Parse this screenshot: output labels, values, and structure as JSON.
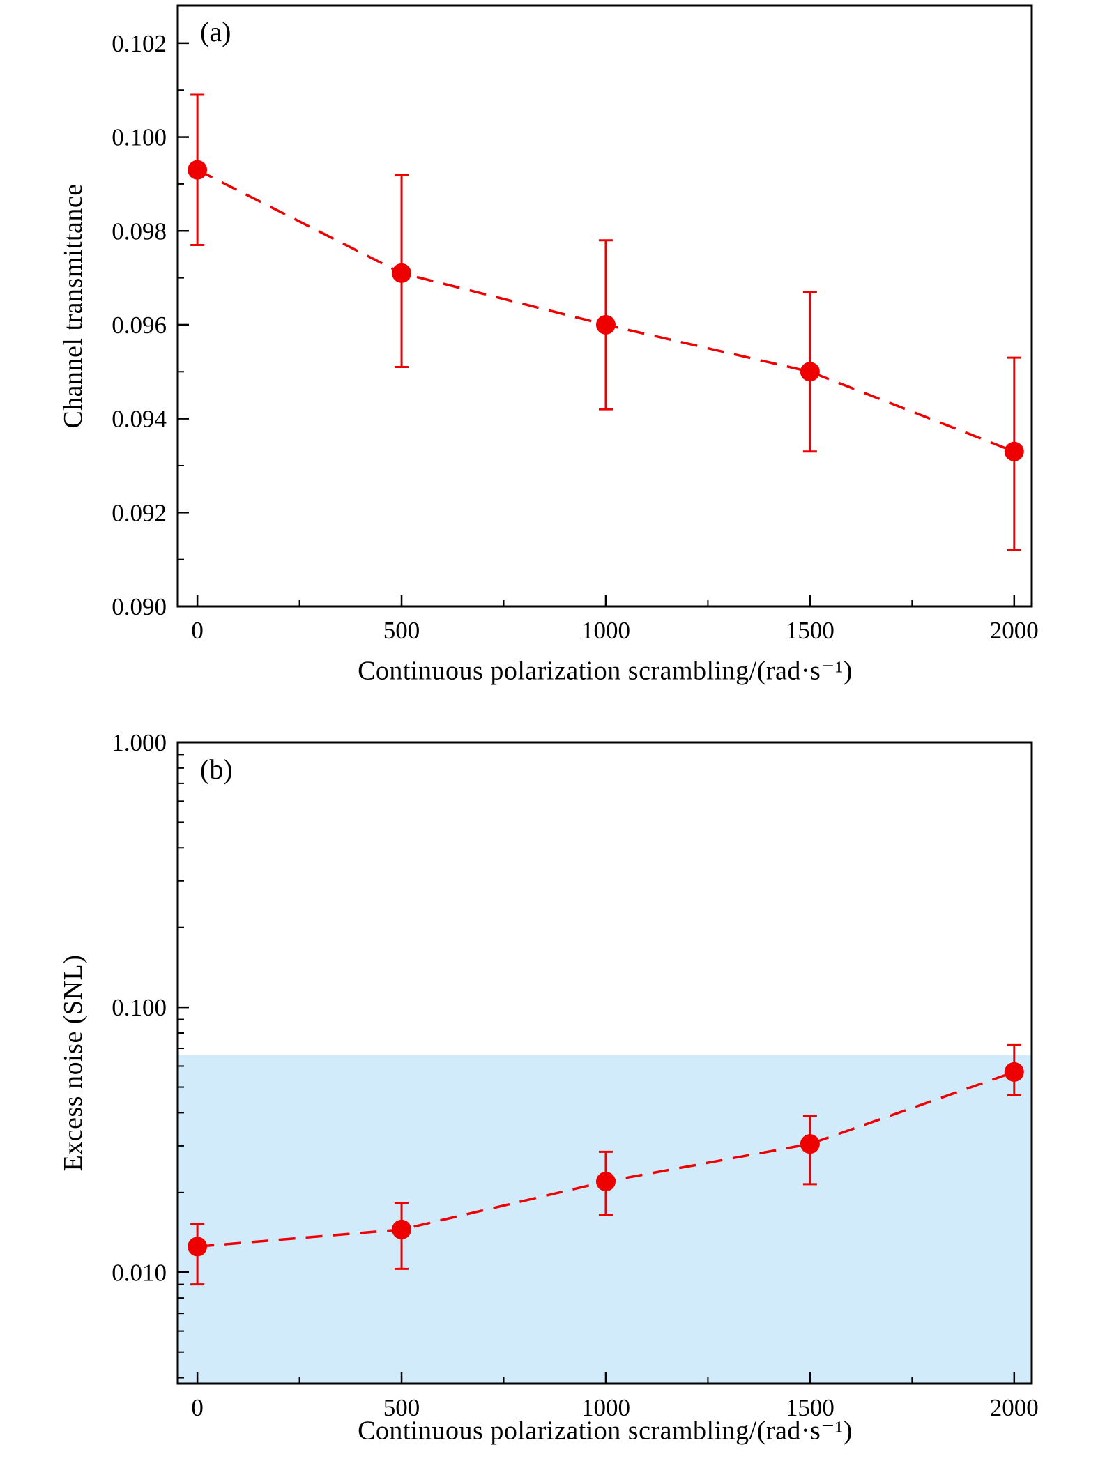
{
  "figure": {
    "background": "#ffffff",
    "accent_red": "#ee0000",
    "band_blue": "#d2ebfb"
  },
  "chart_data": [
    {
      "id": "panel-a",
      "type": "scatter",
      "panel_label": "(a)",
      "title": "",
      "xlabel": "Continuous polarization scrambling/(rad·s⁻¹)",
      "ylabel": "Channel transmittance",
      "xscale": "linear",
      "yscale": "linear",
      "xlim": [
        -48,
        2043
      ],
      "ylim": [
        0.09,
        0.1028
      ],
      "grid": false,
      "legend": "none",
      "x_major_ticks": [
        {
          "v": 0,
          "label": "0"
        },
        {
          "v": 500,
          "label": "500"
        },
        {
          "v": 1000,
          "label": "1000"
        },
        {
          "v": 1500,
          "label": "1500"
        },
        {
          "v": 2000,
          "label": "2000"
        }
      ],
      "x_minor_ticks": [
        250,
        750,
        1250,
        1750
      ],
      "y_major_ticks": [
        {
          "v": 0.09,
          "label": "0.090"
        },
        {
          "v": 0.092,
          "label": "0.092"
        },
        {
          "v": 0.094,
          "label": "0.094"
        },
        {
          "v": 0.096,
          "label": "0.096"
        },
        {
          "v": 0.098,
          "label": "0.098"
        },
        {
          "v": 0.1,
          "label": "0.100"
        },
        {
          "v": 0.102,
          "label": "0.102"
        }
      ],
      "y_minor_ticks": [
        0.091,
        0.093,
        0.095,
        0.097,
        0.099,
        0.101
      ],
      "series": [
        {
          "name": "channel-transmittance",
          "color": "#ee0000",
          "marker": "circle",
          "line": "dashed",
          "points": [
            {
              "x": 0,
              "y": 0.0993,
              "lo": 0.0977,
              "hi": 0.1009
            },
            {
              "x": 500,
              "y": 0.0971,
              "lo": 0.0951,
              "hi": 0.0992
            },
            {
              "x": 1000,
              "y": 0.096,
              "lo": 0.0942,
              "hi": 0.0978
            },
            {
              "x": 1500,
              "y": 0.095,
              "lo": 0.0933,
              "hi": 0.0967
            },
            {
              "x": 2000,
              "y": 0.0933,
              "lo": 0.0912,
              "hi": 0.0953
            }
          ]
        }
      ]
    },
    {
      "id": "panel-b",
      "type": "scatter",
      "panel_label": "(b)",
      "title": "",
      "xlabel": "Continuous polarization scrambling/(rad·s⁻¹)",
      "ylabel": "Excess noise (SNL)",
      "xscale": "linear",
      "yscale": "log",
      "xlim": [
        -48,
        2043
      ],
      "ylim": [
        0.0038,
        1.0
      ],
      "grid": false,
      "legend": "none",
      "band": {
        "top": 0.066,
        "color": "#d2ebfb"
      },
      "x_major_ticks": [
        {
          "v": 0,
          "label": "0"
        },
        {
          "v": 500,
          "label": "500"
        },
        {
          "v": 1000,
          "label": "1000"
        },
        {
          "v": 1500,
          "label": "1500"
        },
        {
          "v": 2000,
          "label": "2000"
        }
      ],
      "x_minor_ticks": [
        250,
        750,
        1250,
        1750
      ],
      "y_major_ticks": [
        {
          "v": 1.0,
          "label": "1.000"
        },
        {
          "v": 0.1,
          "label": "0.100"
        },
        {
          "v": 0.01,
          "label": "0.010"
        }
      ],
      "y_minor_ticks": [
        0.004,
        0.005,
        0.006,
        0.007,
        0.008,
        0.009,
        0.02,
        0.03,
        0.04,
        0.05,
        0.06,
        0.07,
        0.08,
        0.09,
        0.2,
        0.3,
        0.4,
        0.5,
        0.6,
        0.7,
        0.8,
        0.9
      ],
      "series": [
        {
          "name": "excess-noise",
          "color": "#ee0000",
          "marker": "circle",
          "line": "dashed",
          "points": [
            {
              "x": 0,
              "y": 0.0125,
              "lo": 0.009,
              "hi": 0.0152
            },
            {
              "x": 500,
              "y": 0.0145,
              "lo": 0.0103,
              "hi": 0.0182
            },
            {
              "x": 1000,
              "y": 0.022,
              "lo": 0.0165,
              "hi": 0.0285
            },
            {
              "x": 1500,
              "y": 0.0305,
              "lo": 0.0215,
              "hi": 0.039
            },
            {
              "x": 2000,
              "y": 0.057,
              "lo": 0.0465,
              "hi": 0.072
            }
          ]
        }
      ]
    }
  ]
}
